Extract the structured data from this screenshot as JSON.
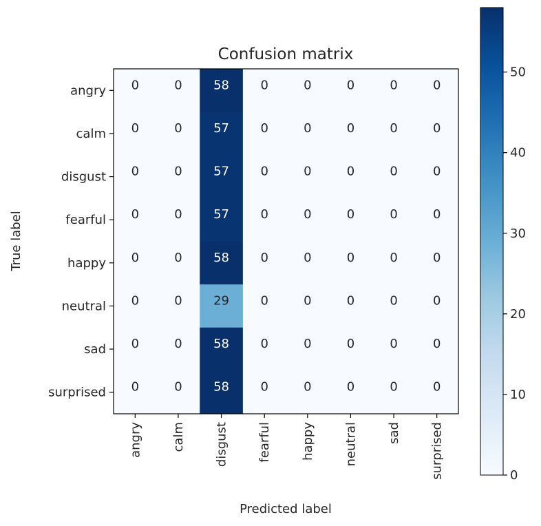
{
  "chart_data": {
    "type": "heatmap",
    "title": "Confusion matrix",
    "xlabel": "Predicted label",
    "ylabel": "True label",
    "x_categories": [
      "angry",
      "calm",
      "disgust",
      "fearful",
      "happy",
      "neutral",
      "sad",
      "surprised"
    ],
    "y_categories": [
      "angry",
      "calm",
      "disgust",
      "fearful",
      "happy",
      "neutral",
      "sad",
      "surprised"
    ],
    "values": [
      [
        0,
        0,
        58,
        0,
        0,
        0,
        0,
        0
      ],
      [
        0,
        0,
        57,
        0,
        0,
        0,
        0,
        0
      ],
      [
        0,
        0,
        57,
        0,
        0,
        0,
        0,
        0
      ],
      [
        0,
        0,
        57,
        0,
        0,
        0,
        0,
        0
      ],
      [
        0,
        0,
        58,
        0,
        0,
        0,
        0,
        0
      ],
      [
        0,
        0,
        29,
        0,
        0,
        0,
        0,
        0
      ],
      [
        0,
        0,
        58,
        0,
        0,
        0,
        0,
        0
      ],
      [
        0,
        0,
        58,
        0,
        0,
        0,
        0,
        0
      ]
    ],
    "colormap": "Blues",
    "colorbar": {
      "range": [
        0,
        58
      ],
      "ticks": [
        0,
        10,
        20,
        30,
        40,
        50
      ]
    },
    "colors": {
      "low": "#f7fbff",
      "high": "#08306b",
      "text_light": "#ffffff",
      "text_dark": "#262626"
    }
  }
}
